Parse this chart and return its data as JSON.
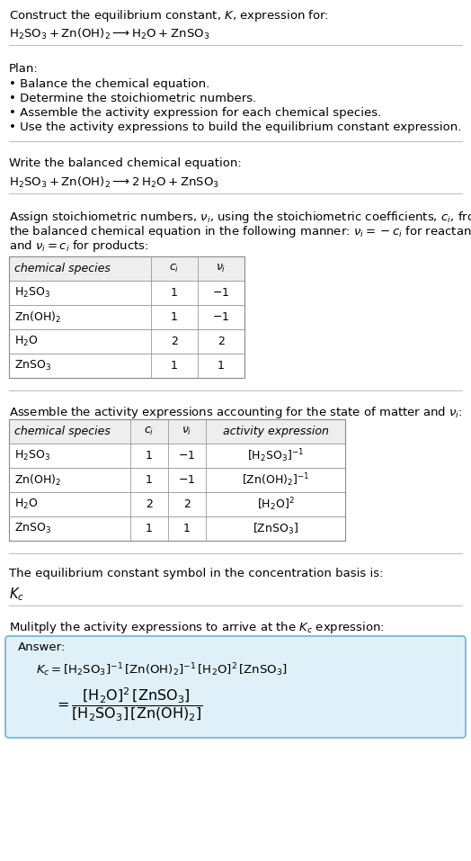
{
  "title_line1": "Construct the equilibrium constant, $K$, expression for:",
  "title_line2": "$\\mathrm{H_2SO_3 + Zn(OH)_2 \\longrightarrow H_2O + ZnSO_3}$",
  "plan_header": "Plan:",
  "plan_bullets": [
    "• Balance the chemical equation.",
    "• Determine the stoichiometric numbers.",
    "• Assemble the activity expression for each chemical species.",
    "• Use the activity expressions to build the equilibrium constant expression."
  ],
  "balanced_header": "Write the balanced chemical equation:",
  "balanced_eq": "$\\mathrm{H_2SO_3 + Zn(OH)_2 \\longrightarrow 2\\,H_2O + ZnSO_3}$",
  "stoich_header_parts": [
    "Assign stoichiometric numbers, $\\nu_i$, using the stoichiometric coefficients, $c_i$, from",
    "the balanced chemical equation in the following manner: $\\nu_i = -c_i$ for reactants",
    "and $\\nu_i = c_i$ for products:"
  ],
  "table1_cols": [
    "chemical species",
    "$c_i$",
    "$\\nu_i$"
  ],
  "table1_rows": [
    [
      "$\\mathrm{H_2SO_3}$",
      "1",
      "$-1$"
    ],
    [
      "$\\mathrm{Zn(OH)_2}$",
      "1",
      "$-1$"
    ],
    [
      "$\\mathrm{H_2O}$",
      "2",
      "2"
    ],
    [
      "$\\mathrm{ZnSO_3}$",
      "1",
      "1"
    ]
  ],
  "activity_header": "Assemble the activity expressions accounting for the state of matter and $\\nu_i$:",
  "table2_cols": [
    "chemical species",
    "$c_i$",
    "$\\nu_i$",
    "activity expression"
  ],
  "table2_rows": [
    [
      "$\\mathrm{H_2SO_3}$",
      "1",
      "$-1$",
      "$[\\mathrm{H_2SO_3}]^{-1}$"
    ],
    [
      "$\\mathrm{Zn(OH)_2}$",
      "1",
      "$-1$",
      "$[\\mathrm{Zn(OH)_2}]^{-1}$"
    ],
    [
      "$\\mathrm{H_2O}$",
      "2",
      "2",
      "$[\\mathrm{H_2O}]^{2}$"
    ],
    [
      "$\\mathrm{ZnSO_3}$",
      "1",
      "1",
      "$[\\mathrm{ZnSO_3}]$"
    ]
  ],
  "kc_header": "The equilibrium constant symbol in the concentration basis is:",
  "kc_symbol": "$K_c$",
  "multiply_header": "Mulitply the activity expressions to arrive at the $K_c$ expression:",
  "answer_label": "Answer:",
  "kc_expr_line1": "$K_c = [\\mathrm{H_2SO_3}]^{-1}\\,[\\mathrm{Zn(OH)_2}]^{-1}\\,[\\mathrm{H_2O}]^{2}\\,[\\mathrm{ZnSO_3}]$",
  "kc_expr_eq": "$= \\dfrac{[\\mathrm{H_2O}]^{2}\\,[\\mathrm{ZnSO_3}]}{[\\mathrm{H_2SO_3}]\\,[\\mathrm{Zn(OH)_2}]}$",
  "bg_color": "#ffffff",
  "answer_box_bg": "#dff0f8",
  "answer_box_border": "#7ab8d4",
  "divider_color": "#bbbbbb",
  "font_size": 9.5,
  "small_font": 9.0
}
